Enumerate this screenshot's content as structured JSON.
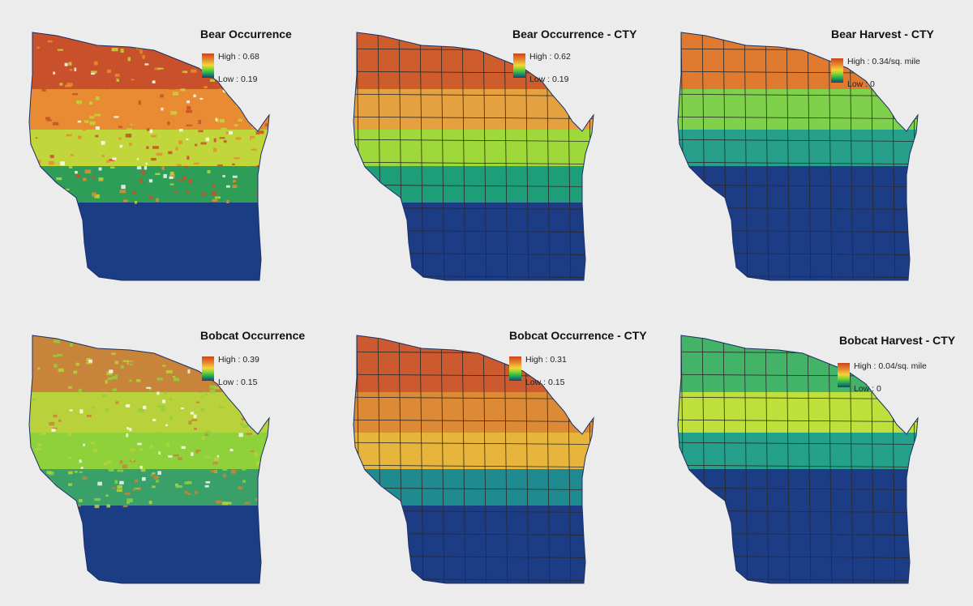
{
  "figure": {
    "panels": [
      {
        "title": "Bear Occurrence",
        "legend_high": "High : 0.68",
        "legend_low": "Low : 0.19",
        "type": "raster",
        "bands": [
          "#c8502a",
          "#e88b33",
          "#c0d63a",
          "#2e9d57",
          "#1b3d84"
        ]
      },
      {
        "title": "Bear Occurrence - CTY",
        "legend_high": "High : 0.62",
        "legend_low": "Low : 0.19",
        "type": "county",
        "bands": [
          "#cf5c2c",
          "#e5a040",
          "#9fd83a",
          "#1e9e78",
          "#1c3c86"
        ]
      },
      {
        "title": "Bear Harvest - CTY",
        "legend_high": "High : 0.34/sq. mile",
        "legend_low": "Low : 0",
        "type": "county",
        "bands": [
          "#e07a2f",
          "#7fd04a",
          "#26a08a",
          "#1c3c86",
          "#1c3c86"
        ]
      },
      {
        "title": "Bobcat Occurrence",
        "legend_high": "High : 0.39",
        "legend_low": "Low : 0.15",
        "type": "raster",
        "bands": [
          "#c8843a",
          "#b9d23c",
          "#8fd13a",
          "#3aa06a",
          "#1b3d84"
        ]
      },
      {
        "title": "Bobcat Occurrence - CTY",
        "legend_high": "High : 0.31",
        "legend_low": "Low : 0.15",
        "type": "county",
        "bands": [
          "#cd5a2e",
          "#dc8a35",
          "#e7b43c",
          "#1f8a90",
          "#1c3c86"
        ]
      },
      {
        "title": "Bobcat Harvest - CTY",
        "legend_high": "High : 0.04/sq. mile",
        "legend_low": "Low : 0",
        "type": "county",
        "bands": [
          "#43b368",
          "#bfe03b",
          "#25a08a",
          "#1c3c86",
          "#1c3c86"
        ]
      }
    ],
    "colors": {
      "ramp": [
        "#c9451b",
        "#e9852c",
        "#f3d63a",
        "#8fd62f",
        "#1fb14c",
        "#1c3c86"
      ],
      "water_blue": "#1c3c86",
      "county_border": "#2a2a2a",
      "background": "#ececec"
    }
  }
}
